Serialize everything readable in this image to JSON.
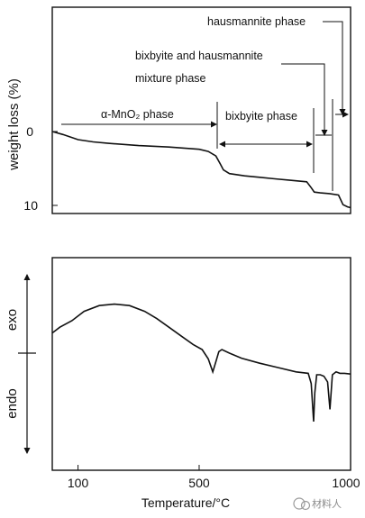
{
  "chart_data": [
    {
      "type": "line",
      "panel": "TG",
      "ylabel": "weight loss (%)",
      "y_ticks": [
        "0",
        "10"
      ],
      "ylim": [
        -12.5,
        11
      ],
      "y_inverted": true,
      "xlim": [
        15,
        1000
      ],
      "series": [
        {
          "x": [
            15,
            50,
            100,
            150,
            200,
            300,
            400,
            500,
            530,
            555,
            570,
            580,
            600,
            650,
            700,
            750,
            800,
            855,
            870,
            880,
            900,
            930,
            960,
            975,
            990,
            1000
          ],
          "y": [
            0,
            0.4,
            1.1,
            1.4,
            1.6,
            1.9,
            2.1,
            2.4,
            2.7,
            3.3,
            4.4,
            5.2,
            5.7,
            6.0,
            6.2,
            6.4,
            6.6,
            6.8,
            7.6,
            8.2,
            8.3,
            8.4,
            8.6,
            9.9,
            10.2,
            10.3
          ]
        }
      ],
      "annotations": {
        "alpha": "α-MnO₂ phase",
        "bixbyite": "bixbyite phase",
        "mixture_line1": "bixbyite and hausmannite",
        "mixture_line2": "mixture phase",
        "hausmannite": "hausmannite phase"
      }
    },
    {
      "type": "line",
      "panel": "DTA",
      "xlabel": "Temperature/°C",
      "x_ticks": [
        100,
        500,
        1000
      ],
      "xlim": [
        15,
        1000
      ],
      "ylim": [
        -1,
        1
      ],
      "exo_label": "exo",
      "endo_label": "endo",
      "series": [
        {
          "x": [
            15,
            40,
            80,
            120,
            170,
            220,
            270,
            320,
            360,
            400,
            440,
            480,
            510,
            530,
            545,
            555,
            565,
            575,
            600,
            640,
            700,
            760,
            820,
            860,
            870,
            878,
            882,
            888,
            900,
            912,
            924,
            932,
            940,
            952,
            965,
            980,
            1000
          ],
          "y": [
            0.28,
            0.36,
            0.45,
            0.58,
            0.66,
            0.68,
            0.66,
            0.58,
            0.48,
            0.36,
            0.24,
            0.12,
            0.05,
            -0.08,
            -0.26,
            -0.12,
            0.02,
            0.05,
            0.0,
            -0.07,
            -0.14,
            -0.2,
            -0.26,
            -0.28,
            -0.42,
            -0.95,
            -0.55,
            -0.3,
            -0.3,
            -0.32,
            -0.4,
            -0.78,
            -0.3,
            -0.26,
            -0.28,
            -0.28,
            -0.29
          ]
        }
      ]
    }
  ],
  "watermark": "材料人"
}
